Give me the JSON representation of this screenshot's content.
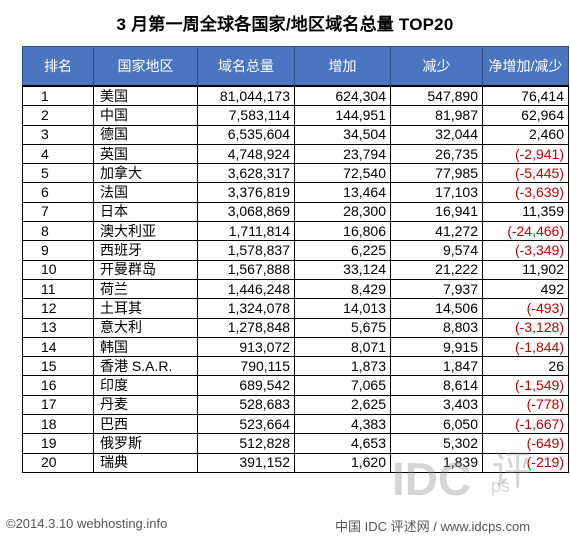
{
  "chart_data": {
    "type": "table",
    "title": "3 月第一周全球各国家/地区域名总量 TOP20",
    "columns": [
      "排名",
      "国家地区",
      "域名总量",
      "增加",
      "减少",
      "净增加/减少"
    ],
    "rows": [
      [
        "1",
        "美国",
        "81,044,173",
        "624,304",
        "547,890",
        "76,414"
      ],
      [
        "2",
        "中国",
        "7,583,114",
        "144,951",
        "81,987",
        "62,964"
      ],
      [
        "3",
        "德国",
        "6,535,604",
        "34,504",
        "32,044",
        "2,460"
      ],
      [
        "4",
        "英国",
        "4,748,924",
        "23,794",
        "26,735",
        "(-2,941)"
      ],
      [
        "5",
        "加拿大",
        "3,628,317",
        "72,540",
        "77,985",
        "(-5,445)"
      ],
      [
        "6",
        "法国",
        "3,376,819",
        "13,464",
        "17,103",
        "(-3,639)"
      ],
      [
        "7",
        "日本",
        "3,068,869",
        "28,300",
        "16,941",
        "11,359"
      ],
      [
        "8",
        "澳大利亚",
        "1,711,814",
        "16,806",
        "41,272",
        "(-24,466)"
      ],
      [
        "9",
        "西班牙",
        "1,578,837",
        "6,225",
        "9,574",
        "(-3,349)"
      ],
      [
        "10",
        "开曼群岛",
        "1,567,888",
        "33,124",
        "21,222",
        "11,902"
      ],
      [
        "11",
        "荷兰",
        "1,446,248",
        "8,429",
        "7,937",
        "492"
      ],
      [
        "12",
        "土耳其",
        "1,324,078",
        "14,013",
        "14,506",
        "(-493)"
      ],
      [
        "13",
        "意大利",
        "1,278,848",
        "5,675",
        "8,803",
        "(-3,128)"
      ],
      [
        "14",
        "韩国",
        "913,072",
        "8,071",
        "9,915",
        "(-1,844)"
      ],
      [
        "15",
        "香港 S.A.R.",
        "790,115",
        "1,873",
        "1,847",
        "26"
      ],
      [
        "16",
        "印度",
        "689,542",
        "7,065",
        "8,614",
        "(-1,549)"
      ],
      [
        "17",
        "丹麦",
        "528,683",
        "2,625",
        "3,403",
        "(-778)"
      ],
      [
        "18",
        "巴西",
        "523,664",
        "4,383",
        "6,050",
        "(-1,667)"
      ],
      [
        "19",
        "俄罗斯",
        "512,828",
        "4,653",
        "5,302",
        "(-649)"
      ],
      [
        "20",
        "瑞典",
        "391,152",
        "1,620",
        "1,839",
        "(-219)"
      ]
    ]
  },
  "footer": {
    "left": "©2014.3.10   webhosting.info",
    "right": "中国 IDC 评述网 / www.idcps.com"
  },
  "watermark": {
    "main": "IDC",
    "sub": "ps",
    "glyph": "评"
  },
  "colors": {
    "header_bg": "#4a76c1",
    "header_text": "#ffffff",
    "negative": "#c00000"
  }
}
